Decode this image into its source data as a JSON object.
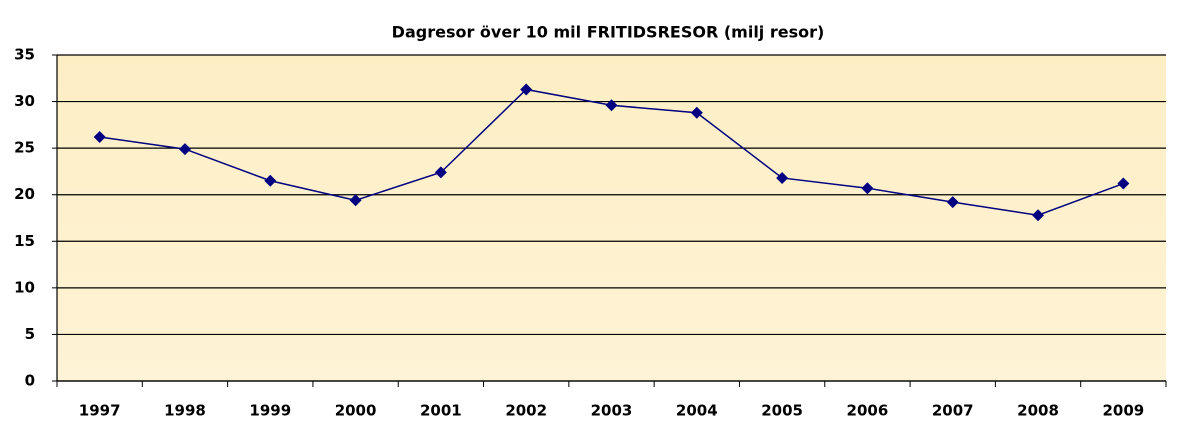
{
  "chart_data": {
    "type": "line",
    "title": "Dagresor över 10 mil FRITIDSRESOR (milj resor)",
    "categories": [
      "1997",
      "1998",
      "1999",
      "2000",
      "2001",
      "2002",
      "2003",
      "2004",
      "2005",
      "2006",
      "2007",
      "2008",
      "2009"
    ],
    "series": [
      {
        "name": "Fritidsresor",
        "color": "#000080",
        "values": [
          26.2,
          24.9,
          21.5,
          19.4,
          22.4,
          31.3,
          29.6,
          28.8,
          21.8,
          20.7,
          19.2,
          17.8,
          21.2
        ]
      }
    ],
    "ylim": [
      0,
      35
    ],
    "yticks": [
      0,
      5,
      10,
      15,
      20,
      25,
      30,
      35
    ],
    "grid": true
  }
}
